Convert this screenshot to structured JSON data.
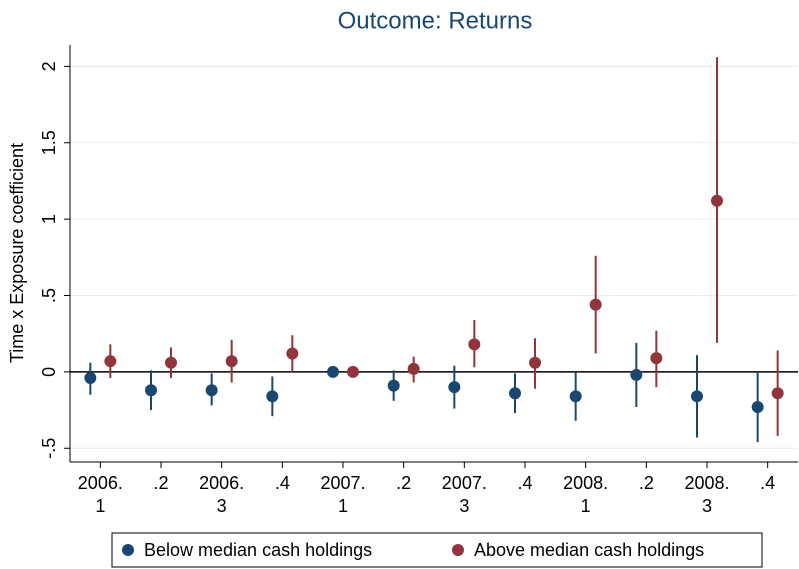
{
  "chart_data": {
    "type": "coefplot",
    "title": "Outcome: Returns",
    "y_label": "Time x Exposure coefficient",
    "categories": [
      [
        "2006.",
        "1"
      ],
      [
        ".2"
      ],
      [
        "2006.",
        "3"
      ],
      [
        ".4"
      ],
      [
        "2007.",
        "1"
      ],
      [
        ".2"
      ],
      [
        "2007.",
        "3"
      ],
      [
        ".4"
      ],
      [
        "2008.",
        "1"
      ],
      [
        ".2"
      ],
      [
        "2008.",
        "3"
      ],
      [
        ".4"
      ]
    ],
    "series": [
      {
        "name": "Below median cash holdings",
        "color": "#1a476f",
        "values": [
          -0.04,
          -0.12,
          -0.12,
          -0.16,
          0,
          -0.09,
          -0.1,
          -0.14,
          -0.16,
          -0.02,
          -0.16,
          -0.23
        ],
        "lower": [
          -0.15,
          -0.25,
          -0.22,
          -0.29,
          0,
          -0.19,
          -0.24,
          -0.27,
          -0.32,
          -0.23,
          -0.43,
          -0.46
        ],
        "upper": [
          0.06,
          0.01,
          -0.01,
          -0.03,
          0,
          0.01,
          0.04,
          -0.01,
          0.0,
          0.19,
          0.11,
          0.0
        ]
      },
      {
        "name": "Above median cash holdings",
        "color": "#90353b",
        "values": [
          0.07,
          0.06,
          0.07,
          0.12,
          0,
          0.02,
          0.18,
          0.06,
          0.44,
          0.09,
          1.12,
          -0.14
        ],
        "lower": [
          -0.04,
          -0.04,
          -0.07,
          0.0,
          0,
          -0.07,
          0.03,
          -0.11,
          0.12,
          -0.1,
          0.19,
          -0.42
        ],
        "upper": [
          0.18,
          0.16,
          0.21,
          0.24,
          0,
          0.1,
          0.34,
          0.22,
          0.76,
          0.27,
          2.06,
          0.14
        ]
      }
    ],
    "ylim": [
      -0.59,
      2.14
    ],
    "yticks": [
      {
        "value": -0.5,
        "label": "-.5"
      },
      0,
      {
        "value": 0.5,
        "label": ".5"
      },
      1,
      1.5,
      2
    ],
    "hline": 0,
    "grid": true,
    "legend": "bottom"
  }
}
